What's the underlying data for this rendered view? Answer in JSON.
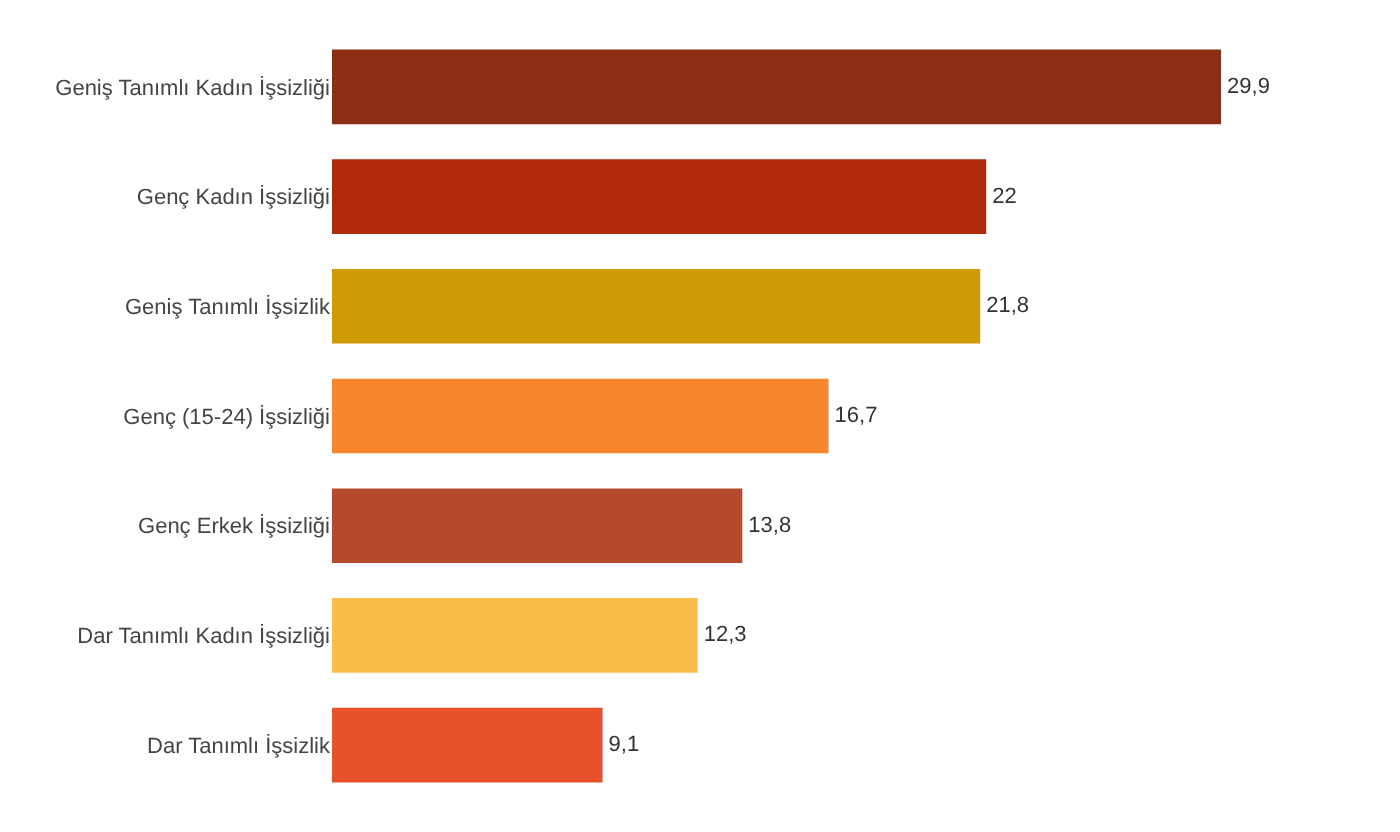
{
  "chart_data": {
    "type": "bar",
    "orientation": "horizontal",
    "categories": [
      "Geniş Tanımlı Kadın İşsizliği",
      "Genç Kadın İşsizliği",
      "Geniş Tanımlı İşsizlik",
      "Genç (15-24) İşsizliği",
      "Genç Erkek İşsizliği",
      "Dar Tanımlı Kadın İşsizliği",
      "Dar Tanımlı İşsizlik"
    ],
    "values": [
      29.9,
      22,
      21.8,
      16.7,
      13.8,
      12.3,
      9.1
    ],
    "value_labels": [
      "29,9",
      "22",
      "21,8",
      "16,7",
      "13,8",
      "12,3",
      "9,1"
    ],
    "colors": [
      "#8c2d14",
      "#b0290a",
      "#cc9b05",
      "#f8862c",
      "#b4492b",
      "#fbbd4a",
      "#e8512b"
    ],
    "grid": false,
    "legend": false
  }
}
